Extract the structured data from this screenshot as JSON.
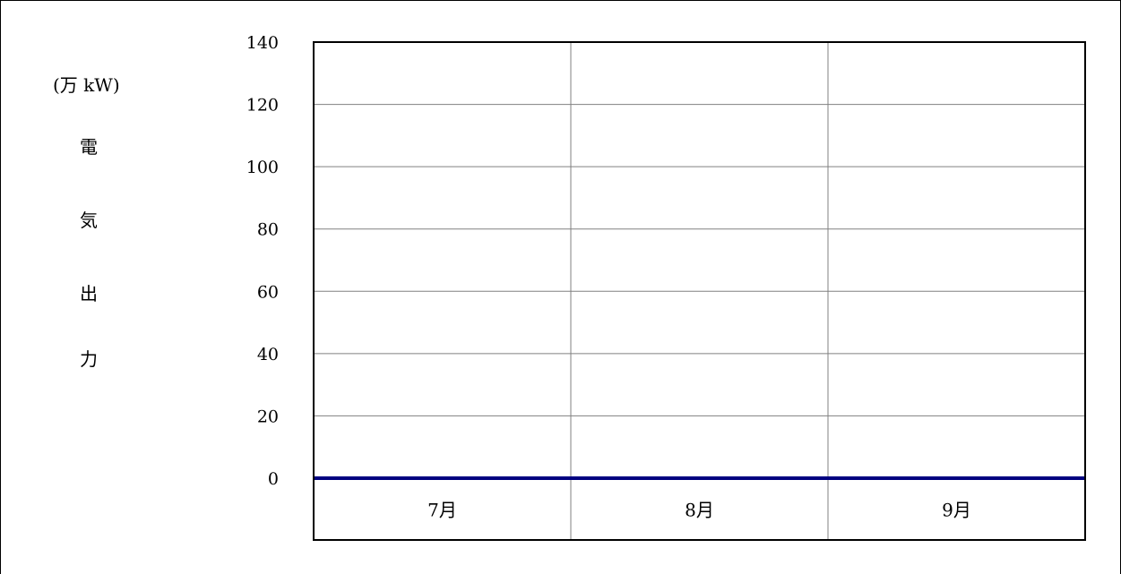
{
  "chart_data": {
    "type": "line",
    "title": "",
    "unit_label": "(万 kW)",
    "ylabel_chars": [
      "電",
      "気",
      "出",
      "力"
    ],
    "categories": [
      "7月",
      "8月",
      "9月"
    ],
    "yticks": [
      0,
      20,
      40,
      60,
      80,
      100,
      120,
      140
    ],
    "ylim": [
      0,
      140
    ],
    "grid": true,
    "legend": "none",
    "series": [
      {
        "values": [
          0,
          0,
          0
        ],
        "color": "#000080"
      }
    ]
  }
}
